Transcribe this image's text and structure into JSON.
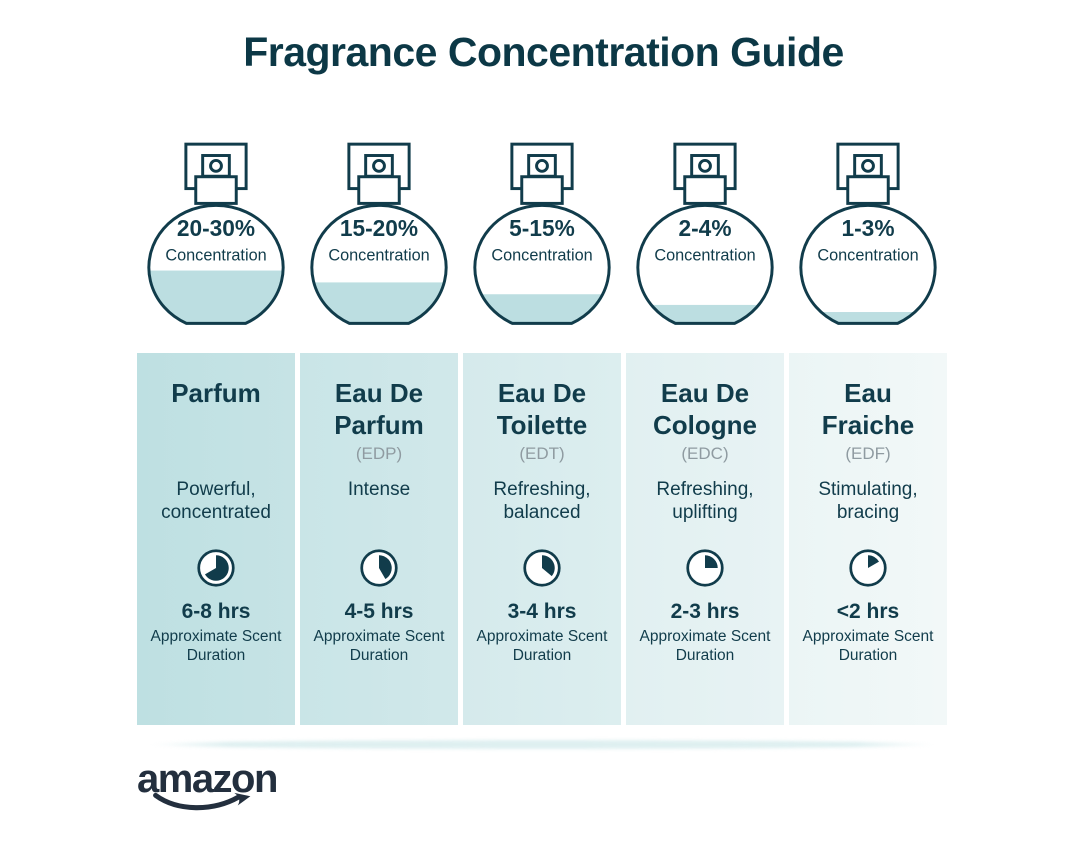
{
  "title": "Fragrance Concentration Guide",
  "colors": {
    "page_bg": "#ffffff",
    "title_ink": "#0c3846",
    "ink": "#113c4b",
    "liquid": "#bcdee1",
    "abbr_gray": "#8f9ba1",
    "amazon_navy": "#232f3e",
    "column_gradients": [
      [
        "#bee0e2",
        "#c6e3e5"
      ],
      [
        "#c9e5e7",
        "#d1e8ea"
      ],
      [
        "#d5eaec",
        "#dceeef"
      ],
      [
        "#e1f0f1",
        "#e8f3f4"
      ],
      [
        "#ebf5f5",
        "#f2f8f8"
      ]
    ]
  },
  "bottles": [
    {
      "percent_label": "20-30%",
      "caption": "Concentration",
      "fill_pct": 45
    },
    {
      "percent_label": "15-20%",
      "caption": "Concentration",
      "fill_pct": 35
    },
    {
      "percent_label": "5-15%",
      "caption": "Concentration",
      "fill_pct": 25
    },
    {
      "percent_label": "2-4%",
      "caption": "Concentration",
      "fill_pct": 16
    },
    {
      "percent_label": "1-3%",
      "caption": "Concentration",
      "fill_pct": 10
    }
  ],
  "columns": [
    {
      "name": "Parfum",
      "abbr": "",
      "description": "Powerful, concentrated",
      "duration": "6-8 hrs",
      "duration_caption": "Approximate Scent Duration",
      "clock_fill_deg": 240
    },
    {
      "name": "Eau De Parfum",
      "abbr": "(EDP)",
      "description": "Intense",
      "duration": "4-5 hrs",
      "duration_caption": "Approximate Scent Duration",
      "clock_fill_deg": 150
    },
    {
      "name": "Eau De Toilette",
      "abbr": "(EDT)",
      "description": "Refreshing, balanced",
      "duration": "3-4 hrs",
      "duration_caption": "Approximate Scent Duration",
      "clock_fill_deg": 130
    },
    {
      "name": "Eau De Cologne",
      "abbr": "(EDC)",
      "description": "Refreshing, uplifting",
      "duration": "2-3 hrs",
      "duration_caption": "Approximate Scent Duration",
      "clock_fill_deg": 90
    },
    {
      "name": "Eau Fraiche",
      "abbr": "(EDF)",
      "description": "Stimulating, bracing",
      "duration": "<2 hrs",
      "duration_caption": "Approximate Scent Duration",
      "clock_fill_deg": 60
    }
  ],
  "footer": {
    "brand": "amazon"
  }
}
